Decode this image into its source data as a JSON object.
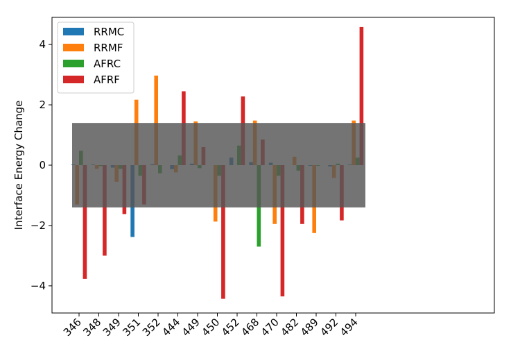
{
  "chart_data": {
    "type": "bar",
    "title": "",
    "xlabel": "",
    "ylabel": "Interface Energy Change",
    "ylim": [
      -4.9,
      4.9
    ],
    "yticks": [
      -4,
      -2,
      0,
      2,
      4
    ],
    "grid": false,
    "legend": "top-left",
    "categories": [
      "346",
      "348",
      "349",
      "351",
      "352",
      "444",
      "449",
      "450",
      "452",
      "468",
      "470",
      "482",
      "489",
      "492",
      "494"
    ],
    "series": [
      {
        "name": "RRMC",
        "color": "#1f77b4",
        "values": [
          0.02,
          0.02,
          -0.08,
          -2.38,
          0.03,
          -0.13,
          0.05,
          0.0,
          0.25,
          0.1,
          0.08,
          0.0,
          -0.02,
          -0.04,
          0.02
        ]
      },
      {
        "name": "RRMF",
        "color": "#ff7f0e",
        "values": [
          -1.3,
          -0.12,
          -0.55,
          2.17,
          2.97,
          -0.24,
          1.45,
          -1.87,
          0.0,
          1.48,
          -1.95,
          0.28,
          -2.25,
          -0.42,
          1.48
        ]
      },
      {
        "name": "AFRC",
        "color": "#2ca02c",
        "values": [
          0.48,
          -0.03,
          -0.12,
          -0.35,
          -0.27,
          0.32,
          -0.1,
          -0.35,
          0.65,
          -2.7,
          -0.35,
          -0.18,
          -0.02,
          0.05,
          0.25
        ]
      },
      {
        "name": "AFRF",
        "color": "#d62728",
        "values": [
          -3.77,
          -3.0,
          -1.62,
          -1.3,
          0.0,
          2.45,
          0.6,
          -4.43,
          2.28,
          0.85,
          -4.35,
          -1.95,
          0.0,
          -1.83,
          4.58
        ]
      }
    ],
    "band": {
      "ymin": -1.4,
      "ymax": 1.4,
      "color": "#555555",
      "opacity": 0.82
    }
  }
}
